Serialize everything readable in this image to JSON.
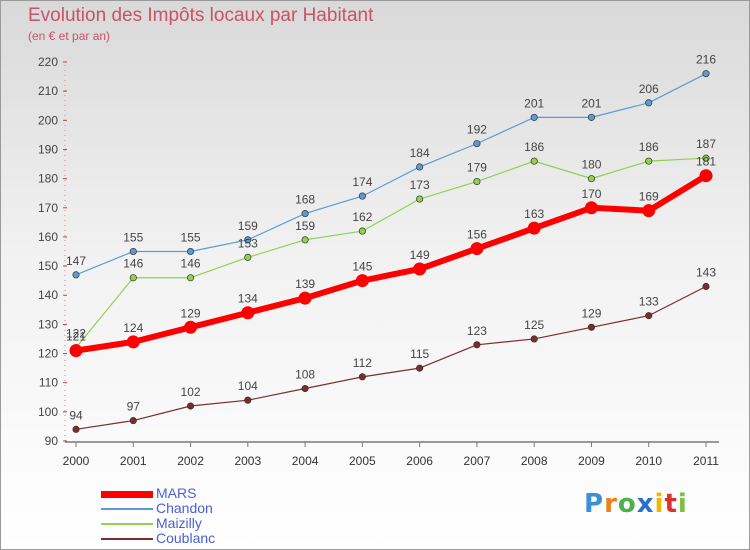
{
  "chart_data": {
    "type": "line",
    "title": "Evolution des Impôts locaux par Habitant",
    "subtitle": "(en € et par an)",
    "categories": [
      "2000",
      "2001",
      "2002",
      "2003",
      "2004",
      "2005",
      "2006",
      "2007",
      "2008",
      "2009",
      "2010",
      "2011"
    ],
    "ylim": [
      90,
      220
    ],
    "yticks": [
      "90",
      "100",
      "110",
      "120",
      "130",
      "140",
      "150",
      "160",
      "170",
      "180",
      "190",
      "200",
      "210",
      "220"
    ],
    "grid": false,
    "legend_position": "bottom-left",
    "series": [
      {
        "name": "Chandon",
        "color": "#5b9bd5",
        "values": [
          147,
          155,
          155,
          159,
          168,
          174,
          184,
          192,
          201,
          201,
          206,
          216
        ]
      },
      {
        "name": "Maizilly",
        "color": "#92d050",
        "values": [
          122,
          146,
          146,
          153,
          159,
          162,
          173,
          179,
          186,
          180,
          186,
          187
        ]
      },
      {
        "name": "Coublanc",
        "color": "#7b2c2c",
        "values": [
          94,
          97,
          102,
          104,
          108,
          112,
          115,
          123,
          125,
          129,
          133,
          143
        ]
      },
      {
        "name": "MARS",
        "color": "#ff0000",
        "values": [
          121,
          124,
          129,
          134,
          139,
          145,
          149,
          156,
          163,
          170,
          169,
          181
        ]
      }
    ],
    "legend_order": [
      "MARS",
      "Chandon",
      "Maizilly",
      "Coublanc"
    ]
  },
  "logo": {
    "letters": [
      "P",
      "r",
      "o",
      "x",
      "i",
      "t",
      "i"
    ],
    "colors": [
      "#3b8fd6",
      "#f07f1a",
      "#4caf50",
      "#2a6fc9",
      "#f5b400",
      "#d9342b",
      "#7ac142"
    ]
  }
}
